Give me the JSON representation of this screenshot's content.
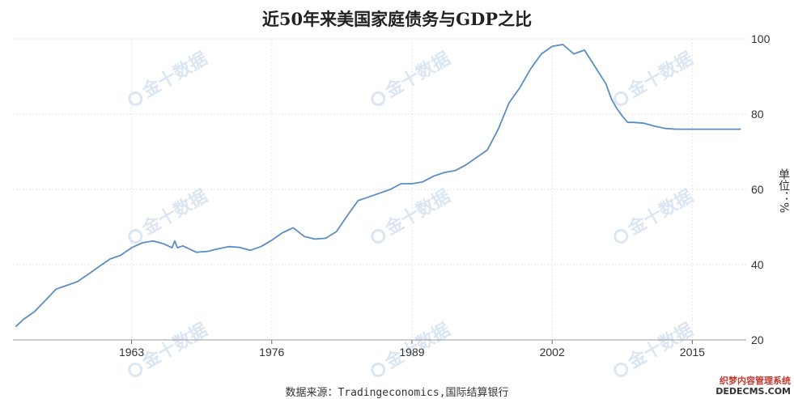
{
  "chart_data": {
    "type": "line",
    "title": "近50年来美国家庭债务与GDP之比",
    "ylabel": "单位：%",
    "source": "数据来源：Tradingeconomics,国际结算银行",
    "xlim": [
      1952.5,
      2020.5
    ],
    "ylim": [
      20,
      100
    ],
    "xticks": [
      "1963",
      "1976",
      "1989",
      "2002",
      "2015"
    ],
    "yticks": [
      "20",
      "40",
      "60",
      "80",
      "100"
    ],
    "grid": true,
    "line_color": "#5b8ec4",
    "series": [
      {
        "x": [
          1952.75,
          1953.5,
          1954.5,
          1955.5,
          1956.5,
          1957.5,
          1958.5,
          1959.5,
          1960.5,
          1961.5,
          1962.5,
          1963.5,
          1964.5,
          1965.5,
          1966.5,
          1967.25,
          1967.5,
          1967.75,
          1968.25,
          1969.5,
          1970.5,
          1971.5,
          1972.5,
          1973.5,
          1974.5,
          1975.5,
          1976.5,
          1977.5,
          1978.5,
          1979.5,
          1980.5,
          1981.5,
          1982.5,
          1983.5,
          1984.5,
          1985.5,
          1986.5,
          1987.5,
          1988.5,
          1989.5,
          1990.5,
          1991.5,
          1992.5,
          1993.5,
          1994.5,
          1995.5,
          1996.5,
          1997.5,
          1998.5,
          1999.5,
          2000.5,
          2001.5,
          2002.5,
          2003.5,
          2004.5,
          2005.5,
          2006.5,
          2007.5,
          2008.0,
          2008.5,
          2009.0,
          2009.5,
          2010.0,
          2011.0,
          2012.0,
          2013.0,
          2014.0,
          2015.0,
          2016.0,
          2017.0,
          2018.0,
          2019.0,
          2020.0
        ],
        "y": [
          23.5,
          25.5,
          27.5,
          30.5,
          33.5,
          34.5,
          35.5,
          37.5,
          39.5,
          41.5,
          42.5,
          44.5,
          45.8,
          46.3,
          45.5,
          44.5,
          46.3,
          44.5,
          45.0,
          43.3,
          43.5,
          44.2,
          44.8,
          44.6,
          43.8,
          44.8,
          46.5,
          48.5,
          49.8,
          47.5,
          46.8,
          47.0,
          48.8,
          53.0,
          57.0,
          58.0,
          59.0,
          60.0,
          61.5,
          61.5,
          62.0,
          63.5,
          64.5,
          65.0,
          66.5,
          68.5,
          70.5,
          76.0,
          83.0,
          87.0,
          92.0,
          96.0,
          98.0,
          98.5,
          96.0,
          97.0,
          92.5,
          88.0,
          84.0,
          81.5,
          79.5,
          77.8,
          77.8,
          77.6,
          76.8,
          76.2,
          76.0,
          76.0,
          76.0,
          76.0,
          76.0,
          76.0,
          76.0
        ]
      }
    ],
    "watermark": "金十数据",
    "corner_label": "织梦内容管理系统",
    "corner_url": "DEDECMS.COM"
  }
}
